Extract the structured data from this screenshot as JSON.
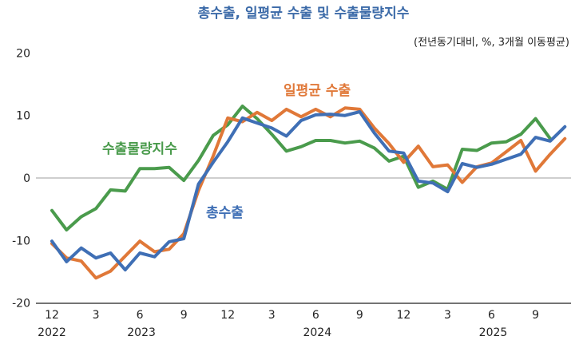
{
  "chart_data": {
    "type": "line",
    "title": "총수출, 일평균 수출 및 수출물량지수",
    "subtitle": "(전년동기대비, %, 3개월 이동평균)",
    "xlabel": "",
    "ylabel": "",
    "ylim": [
      -20,
      20
    ],
    "yticks": [
      20,
      10,
      0,
      -10,
      -20
    ],
    "grid": "zero-line only",
    "x_tick_labels": [
      {
        "month_index": 0,
        "label": "12",
        "year": "2022"
      },
      {
        "month_index": 3,
        "label": "3"
      },
      {
        "month_index": 6,
        "label": "6",
        "year": "2023"
      },
      {
        "month_index": 9,
        "label": "9"
      },
      {
        "month_index": 12,
        "label": "12"
      },
      {
        "month_index": 15,
        "label": "3"
      },
      {
        "month_index": 18,
        "label": "6",
        "year": "2024"
      },
      {
        "month_index": 21,
        "label": "9"
      },
      {
        "month_index": 24,
        "label": "12"
      },
      {
        "month_index": 27,
        "label": "3"
      },
      {
        "month_index": 30,
        "label": "6",
        "year": "2025"
      },
      {
        "month_index": 33,
        "label": "9"
      }
    ],
    "x_start": "2022-12",
    "series": [
      {
        "name": "총수출",
        "color": "#3f6fb5",
        "values": [
          -10.1,
          -13.4,
          -11.2,
          -12.8,
          -12.0,
          -14.7,
          -12.0,
          -12.6,
          -10.2,
          -9.7,
          -1.0,
          2.5,
          5.8,
          9.6,
          8.8,
          8.0,
          6.7,
          9.2,
          10.1,
          10.2,
          10.0,
          10.6,
          7.2,
          4.3,
          4.0,
          -0.5,
          -0.8,
          -2.2,
          2.3,
          1.7,
          2.2,
          3.0,
          3.8,
          6.5,
          5.9,
          8.2
        ]
      },
      {
        "name": "일평균 수출",
        "color": "#e07838",
        "values": [
          -10.5,
          -12.8,
          -13.3,
          -16.0,
          -14.9,
          -12.5,
          -10.1,
          -11.8,
          -11.4,
          -8.9,
          -2.0,
          3.5,
          9.6,
          9.0,
          10.5,
          9.2,
          11.0,
          9.8,
          11.0,
          9.8,
          11.2,
          11.0,
          8.0,
          5.5,
          2.5,
          5.1,
          1.8,
          2.1,
          -0.7,
          1.8,
          2.4,
          4.2,
          6.0,
          1.1,
          3.8,
          6.3
        ]
      },
      {
        "name": "수출물량지수",
        "color": "#4a9b4c",
        "values": [
          -5.2,
          -8.3,
          -6.2,
          -4.9,
          -1.9,
          -2.1,
          1.5,
          1.5,
          1.7,
          -0.4,
          2.8,
          6.8,
          8.5,
          11.5,
          9.5,
          7.0,
          4.3,
          5.0,
          6.0,
          6.0,
          5.6,
          5.9,
          4.8,
          2.7,
          3.5,
          -1.5,
          -0.5,
          -1.8,
          4.6,
          4.4,
          5.6,
          5.8,
          7.0,
          9.5,
          6.3,
          null
        ]
      }
    ]
  }
}
